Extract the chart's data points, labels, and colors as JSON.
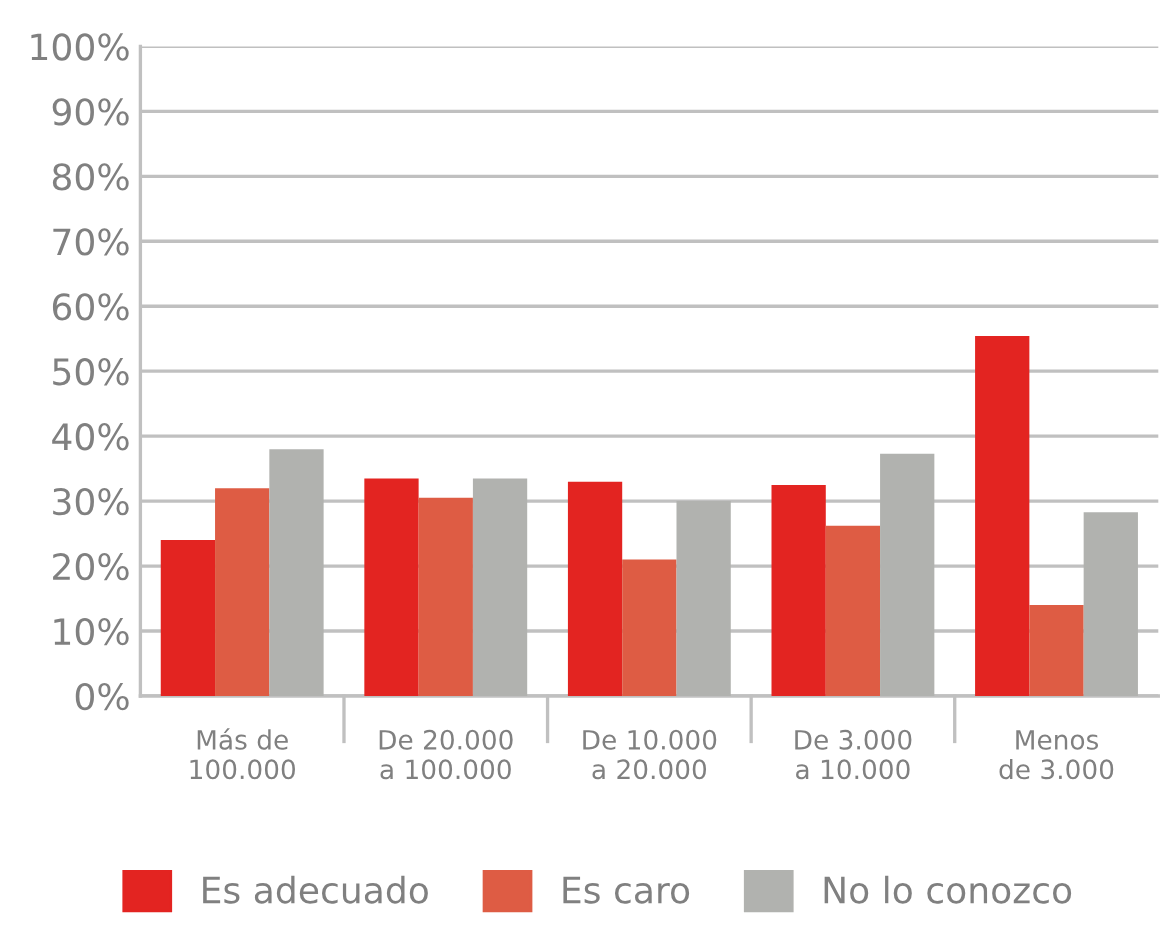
{
  "chart_data": {
    "type": "bar",
    "categories": [
      "Más de\n100.000",
      "De 20.000\na 100.000",
      "De 10.000\na 20.000",
      "De 3.000\na 10.000",
      "Menos\nde 3.000"
    ],
    "series": [
      {
        "name": "Es adecuado",
        "color": "#e32421",
        "values": [
          24,
          33.5,
          33,
          32.5,
          55.4
        ]
      },
      {
        "name": "Es caro",
        "color": "#de5c44",
        "values": [
          32,
          30.5,
          21,
          26.2,
          14
        ]
      },
      {
        "name": "No lo conozco",
        "color": "#b1b2af",
        "values": [
          38,
          33.5,
          30,
          37.3,
          28.3
        ]
      }
    ],
    "ylim": [
      0,
      100
    ],
    "yticks": [
      {
        "value": 0,
        "label": "0%"
      },
      {
        "value": 10,
        "label": "10%"
      },
      {
        "value": 20,
        "label": "20%"
      },
      {
        "value": 30,
        "label": "30%"
      },
      {
        "value": 40,
        "label": "40%"
      },
      {
        "value": 50,
        "label": "50%"
      },
      {
        "value": 60,
        "label": "60%"
      },
      {
        "value": 70,
        "label": "70%"
      },
      {
        "value": 80,
        "label": "80%"
      },
      {
        "value": 90,
        "label": "90%"
      },
      {
        "value": 100,
        "label": "100%"
      }
    ],
    "grid": "y",
    "legend": "bottom"
  }
}
